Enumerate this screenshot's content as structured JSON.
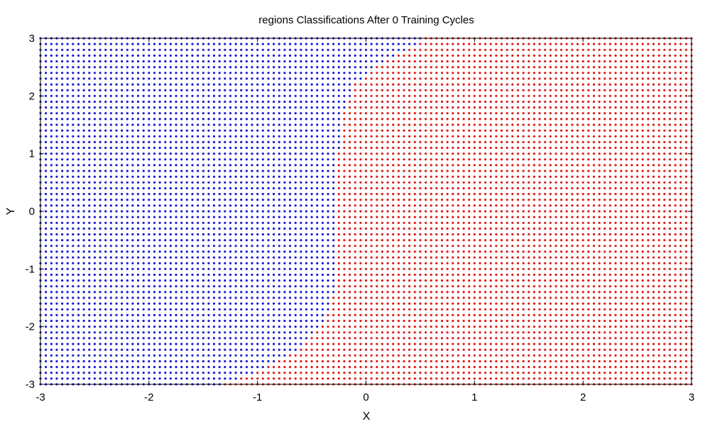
{
  "chart_data": {
    "type": "scatter",
    "title": "regions Classifications After 0 Training Cycles",
    "xlabel": "X",
    "ylabel": "Y",
    "xlim": [
      -3,
      3
    ],
    "ylim": [
      -3,
      3
    ],
    "x_ticks": [
      "-3",
      "-2",
      "-1",
      "0",
      "1",
      "2",
      "3"
    ],
    "y_ticks": [
      "-3",
      "-2",
      "-1",
      "0",
      "1",
      "2",
      "3"
    ],
    "grid": false,
    "legend": "none",
    "grid_sampling": {
      "x_step": 0.05,
      "y_step": 0.1
    },
    "series": [],
    "class_colors": {
      "region_a": "#1a1ad6",
      "region_b": "#e01a1a"
    },
    "decision_boundary": {
      "x": [
        -1.3,
        -0.9,
        -0.6,
        -0.4,
        -0.3,
        -0.25,
        -0.25,
        -0.22,
        -0.1,
        0.1,
        0.3,
        0.45,
        0.55
      ],
      "y": [
        -3.0,
        -2.7,
        -2.4,
        -2.0,
        -1.5,
        -1.0,
        1.0,
        1.6,
        2.2,
        2.5,
        2.75,
        2.9,
        3.0
      ]
    }
  }
}
